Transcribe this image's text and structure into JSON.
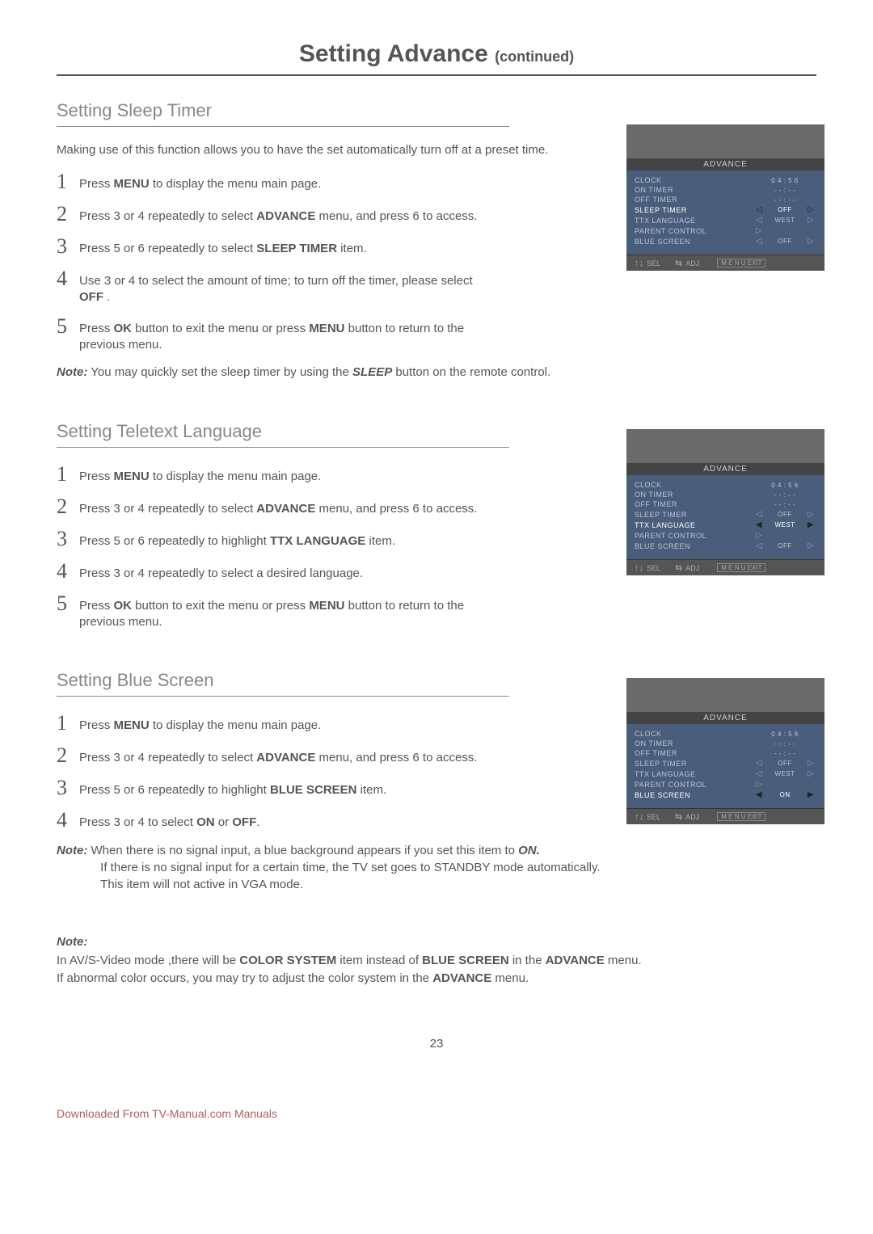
{
  "pageTitle": "Setting Advance",
  "pageTitleCont": "(continued)",
  "pageNumber": "23",
  "downloadText": "Downloaded From TV-Manual.com Manuals",
  "tvFoot": {
    "sel": "SEL",
    "adj": "ADJ",
    "exit": "M E N U EXIT"
  },
  "sections": [
    {
      "title": "Setting Sleep Timer",
      "intro": "Making use of this function allows you to have the set automatically turn off at a preset time.",
      "steps": [
        "Press  <b>MENU</b> to display the menu main page.",
        "Press  3 or 4  repeatedly to select <b>ADVANCE</b> menu, and press 6  to access.",
        "Press   5 or 6 repeatedly to select  <b>SLEEP TIMER</b> item.",
        "Use  3 or 4 to select the amount of time; to turn off the timer, please select <b>OFF</b> .",
        "Press <b>OK</b> button to exit the menu  or press  <b>MENU</b>  button to return to the previous menu."
      ],
      "note": "<em class='lbl'>Note:</em>  You may quickly set the sleep timer by using the <b>SLEEP</b> button on the remote control.",
      "menu": {
        "title": "ADVANCE",
        "rows": [
          {
            "label": "CLOCK",
            "val": "0 4 : 5 6",
            "al": "",
            "ar": ""
          },
          {
            "label": "ON  TIMER",
            "val": "- - : - -",
            "al": "",
            "ar": ""
          },
          {
            "label": "OFF  TIMER",
            "val": "- - : - -",
            "al": "",
            "ar": ""
          },
          {
            "label": "SLEEP  TIMER",
            "val": "OFF",
            "al": "◁",
            "ar": "▷",
            "hl": true
          },
          {
            "label": "TTX  LANGUAGE",
            "val": "WEST",
            "al": "◁",
            "ar": "▷"
          },
          {
            "label": "PARENT  CONTROL",
            "val": "",
            "al": "▷",
            "ar": ""
          },
          {
            "label": "BLUE  SCREEN",
            "val": "OFF",
            "al": "◁",
            "ar": "▷"
          }
        ]
      },
      "screenTop": "30px"
    },
    {
      "title": "Setting Teletext Language",
      "steps": [
        "Press  <b>MENU</b> to display the menu main page.",
        "Press  3 or 4  repeatedly to select <b>ADVANCE</b> menu, and press 6  to access.",
        "Press   5 or 6 repeatedly to highlight <b>TTX LANGUAGE</b> item.",
        "Press  3 or 4  repeatedly to select a desired language.",
        "Press <b>OK</b> button to exit the menu  or press  <b>MENU</b>  button to return to the previous menu."
      ],
      "menu": {
        "title": "ADVANCE",
        "rows": [
          {
            "label": "CLOCK",
            "val": "0 4 : 5 6",
            "al": "",
            "ar": ""
          },
          {
            "label": "ON  TIMER",
            "val": "- - : - -",
            "al": "",
            "ar": ""
          },
          {
            "label": "OFF  TIMER",
            "val": "- - : - -",
            "al": "",
            "ar": ""
          },
          {
            "label": "SLEEP  TIMER",
            "val": "OFF",
            "al": "◁",
            "ar": "▷"
          },
          {
            "label": "TTX  LANGUAGE",
            "val": "WEST",
            "al": "◀",
            "ar": "▶",
            "hl": true
          },
          {
            "label": "PARENT  CONTROL",
            "val": "",
            "al": "▷",
            "ar": ""
          },
          {
            "label": "BLUE  SCREEN",
            "val": "OFF",
            "al": "◁",
            "ar": "▷"
          }
        ]
      },
      "screenTop": "10px"
    },
    {
      "title": "Setting Blue Screen",
      "steps": [
        "Press  <b>MENU</b> to display the menu main page.",
        "Press  3 or 4  repeatedly to select <b>ADVANCE</b> menu, and press 6  to access.",
        "Press  5  or  6  repeatedly to highlight <b>BLUE SCREEN</b> item.",
        "Press  3 or 4 to select <b>ON</b> or <b>OFF</b>."
      ],
      "note": "<em class='lbl'>Note:</em>    When there is no signal input, a blue background appears if you set this item to <b>ON.</b><br>&nbsp;&nbsp;&nbsp;&nbsp;&nbsp;&nbsp;&nbsp;&nbsp;&nbsp;&nbsp;&nbsp;&nbsp;&nbsp;If there is no signal input for a certain time, the TV set goes to STANDBY mode  automatically.<br>&nbsp;&nbsp;&nbsp;&nbsp;&nbsp;&nbsp;&nbsp;&nbsp;&nbsp;&nbsp;&nbsp;&nbsp;&nbsp;This item will not active in VGA mode.",
      "menu": {
        "title": "ADVANCE",
        "rows": [
          {
            "label": "CLOCK",
            "val": "0 4 : 5 6",
            "al": "",
            "ar": ""
          },
          {
            "label": "ON  TIMER",
            "val": "- - : - -",
            "al": "",
            "ar": ""
          },
          {
            "label": "OFF  TIMER",
            "val": "- - : - -",
            "al": "",
            "ar": ""
          },
          {
            "label": "SLEEP  TIMER",
            "val": "OFF",
            "al": "◁",
            "ar": "▷"
          },
          {
            "label": "TTX  LANGUAGE",
            "val": "WEST",
            "al": "◁",
            "ar": "▷"
          },
          {
            "label": "PARENT  CONTROL",
            "val": "",
            "al": "▷",
            "ar": ""
          },
          {
            "label": "BLUE  SCREEN",
            "val": "ON",
            "al": "◀",
            "ar": "▶",
            "hl": true
          }
        ]
      },
      "screenTop": "10px"
    }
  ],
  "bottomNote": "<span class='hdr'>Note:</span><br>In AV/S-Video mode ,there will be  <b>COLOR SYSTEM</b> item instead of <b>BLUE SCREEN</b> in the <b>ADVANCE</b> menu.<br>If abnormal color occurs, you may try to adjust the color system in the <b>ADVANCE</b> menu."
}
